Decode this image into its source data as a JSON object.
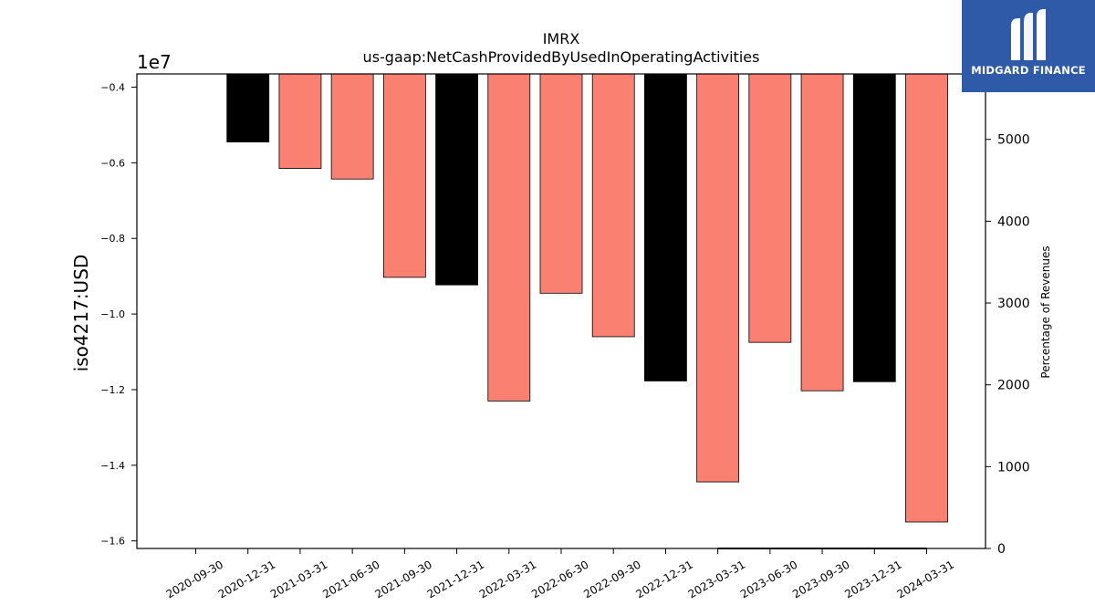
{
  "chart_data": {
    "type": "bar",
    "title": "IMRX",
    "subtitle": "us-gaap:NetCashProvidedByUsedInOperatingActivities",
    "ylabel": "iso4217:USD",
    "y2label": "Percentage of Revenues",
    "y_scale_label": "1e7",
    "ylim": [
      -16200000,
      -3650000
    ],
    "y2lim": [
      0,
      5800
    ],
    "yticks": [
      -4000000,
      -6000000,
      -8000000,
      -10000000,
      -12000000,
      -14000000,
      -16000000
    ],
    "ytick_labels": [
      "−0.4",
      "−0.6",
      "−0.8",
      "−1.0",
      "−1.2",
      "−1.4",
      "−1.6"
    ],
    "y2ticks": [
      0,
      1000,
      2000,
      3000,
      4000,
      5000
    ],
    "y2tick_labels": [
      "0",
      "1000",
      "2000",
      "3000",
      "4000",
      "5000"
    ],
    "categories": [
      "2020-09-30",
      "2020-12-31",
      "2021-03-31",
      "2021-06-30",
      "2021-09-30",
      "2021-12-31",
      "2022-03-31",
      "2022-06-30",
      "2022-09-30",
      "2022-12-31",
      "2023-03-31",
      "2023-06-30",
      "2023-09-30",
      "2023-12-31",
      "2024-03-31"
    ],
    "values": [
      null,
      -5450000,
      -6150000,
      -6430000,
      -9030000,
      -9230000,
      -12300000,
      -9450000,
      -10600000,
      -11770000,
      -14440000,
      -10750000,
      -12030000,
      -11790000,
      -15500000
    ],
    "bar_colors": [
      "",
      "#000000",
      "#fa8072",
      "#fa8072",
      "#fa8072",
      "#000000",
      "#fa8072",
      "#fa8072",
      "#fa8072",
      "#000000",
      "#fa8072",
      "#fa8072",
      "#fa8072",
      "#000000",
      "#fa8072"
    ],
    "revenue_pct": {
      "categories": [
        "2023-03-31",
        "2023-06-30",
        "2023-09-30",
        "2023-12-31",
        "2024-03-31"
      ],
      "values": [
        0,
        0,
        0,
        0,
        0
      ],
      "color": "#000000"
    },
    "grid": false
  },
  "logo": {
    "text": "MIDGARD FINANCE",
    "color": "#2f5aa8"
  }
}
